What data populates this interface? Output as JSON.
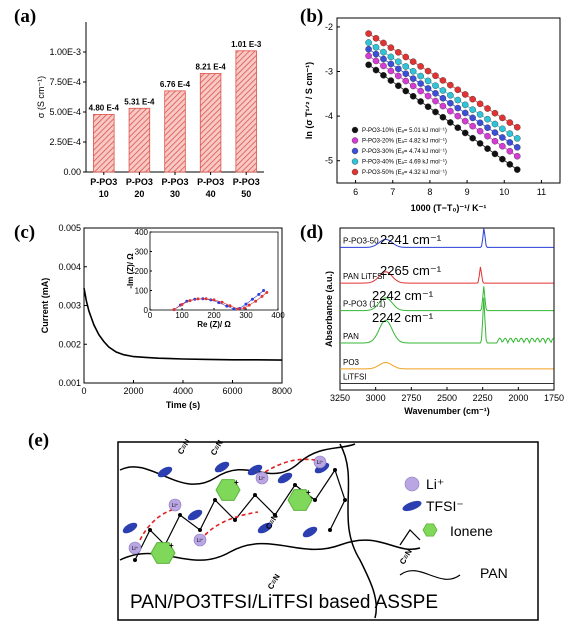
{
  "panels": {
    "a": "(a)",
    "b": "(b)",
    "c": "(c)",
    "d": "(d)",
    "e": "(e)"
  },
  "chart_data": [
    {
      "panel": "a",
      "type": "bar",
      "categories": [
        [
          "P-PO3",
          "10"
        ],
        [
          "P-PO3",
          "20"
        ],
        [
          "P-PO3",
          "30"
        ],
        [
          "P-PO3",
          "40"
        ],
        [
          "P-PO3",
          "50"
        ]
      ],
      "values": [
        0.00048,
        0.000531,
        0.000676,
        0.000821,
        0.00101
      ],
      "data_labels": [
        "4.80 E-4",
        "5.31 E-4",
        "6.76 E-4",
        "8.21 E-4",
        "1.01 E-3"
      ],
      "ylabel": "σ (S cm⁻¹)",
      "ylim": [
        0,
        0.00125
      ],
      "yticks": [
        0,
        0.00025,
        0.0005,
        0.00075,
        0.001
      ],
      "ytick_labels": [
        "0.00",
        "2.50E-4",
        "5.00E-4",
        "7.50E-4",
        "1.00E-3"
      ],
      "colors": {
        "fill": "#f6c9c5",
        "hatch": "#e0524a"
      }
    },
    {
      "panel": "b",
      "type": "scatter",
      "xlabel": "1000 (T−T₀)⁻¹/ K⁻¹",
      "ylabel": "ln (σ T¹ᐟ² / S cm⁻¹)",
      "xlim": [
        5.5,
        11.5
      ],
      "ylim": [
        -5.5,
        -1.8
      ],
      "xticks": [
        6,
        7,
        8,
        9,
        10,
        11
      ],
      "yticks": [
        -5,
        -4,
        -3,
        -2
      ],
      "x": [
        6.35,
        6.55,
        6.75,
        6.95,
        7.15,
        7.35,
        7.55,
        7.75,
        7.95,
        8.15,
        8.35,
        8.55,
        8.75,
        8.95,
        9.15,
        9.35,
        9.55,
        9.75,
        9.95,
        10.15,
        10.35
      ],
      "series": [
        {
          "name": "P-PO3-10% (Eₐ= 5.01 kJ mol⁻¹)",
          "color": "#111111",
          "y0": -2.85,
          "y1": -5.2
        },
        {
          "name": "P-PO3-20% (Eₐ= 4.82 kJ mol⁻¹)",
          "color": "#d63bd6",
          "y0": -2.65,
          "y1": -4.9
        },
        {
          "name": "P-PO3-30% (Eₐ= 4.74 kJ mol⁻¹)",
          "color": "#3b4fd8",
          "y0": -2.5,
          "y1": -4.7
        },
        {
          "name": "P-PO3-40% (Eₐ= 4.69 kJ mol⁻¹)",
          "color": "#2fc4d8",
          "y0": -2.35,
          "y1": -4.5
        },
        {
          "name": "P-PO3-50% (Eₐ= 4.32 kJ mol⁻¹)",
          "color": "#e23232",
          "y0": -2.15,
          "y1": -4.25
        }
      ],
      "legend": "bottom-right"
    },
    {
      "panel": "c",
      "type": "line",
      "xlabel": "Time (s)",
      "ylabel": "Current (mA)",
      "xlim": [
        0,
        8000
      ],
      "ylim": [
        0.001,
        0.005
      ],
      "xticks": [
        0,
        2000,
        4000,
        6000,
        8000
      ],
      "yticks": [
        0.001,
        0.002,
        0.003,
        0.004,
        0.005
      ],
      "ytick_labels": [
        "0.001",
        "0.002",
        "0.003",
        "0.004",
        "0.005"
      ],
      "x": [
        0,
        100,
        200,
        400,
        600,
        800,
        1000,
        1300,
        1600,
        2000,
        2500,
        3000,
        3500,
        4000,
        5000,
        6000,
        7000,
        8000
      ],
      "y": [
        0.00345,
        0.0031,
        0.00285,
        0.0025,
        0.00225,
        0.00207,
        0.00193,
        0.0018,
        0.00173,
        0.00168,
        0.00166,
        0.00164,
        0.00163,
        0.00162,
        0.00161,
        0.0016,
        0.0016,
        0.00159
      ],
      "color": "#000000",
      "inset": {
        "xlabel": "Re (Z)/ Ω",
        "ylabel": "-Im (Z)/ Ω",
        "xlim": [
          0,
          400
        ],
        "ylim": [
          0,
          400
        ],
        "xticks": [
          0,
          100,
          200,
          300,
          400
        ],
        "yticks": [
          0,
          100,
          200,
          300,
          400
        ],
        "series": [
          {
            "color": "#2a3fd8",
            "x": [
              75,
              95,
              115,
              140,
              165,
              190,
              215,
              240,
              262,
              280,
              300,
              320,
              340,
              355
            ],
            "y": [
              2,
              25,
              45,
              55,
              58,
              52,
              38,
              20,
              5,
              8,
              30,
              55,
              80,
              100
            ]
          },
          {
            "color": "#e23232",
            "x": [
              75,
              100,
              125,
              150,
              175,
              200,
              225,
              250,
              275,
              295,
              310,
              330,
              350,
              365
            ],
            "y": [
              2,
              28,
              48,
              57,
              58,
              52,
              40,
              22,
              5,
              10,
              25,
              45,
              70,
              90
            ]
          }
        ]
      }
    },
    {
      "panel": "d",
      "type": "line",
      "xlabel": "Wavenumber (cm⁻¹)",
      "ylabel": "Absorbance (a.u.)",
      "xlim": [
        3250,
        1750
      ],
      "xticks": [
        3250,
        3000,
        2750,
        2500,
        2250,
        2000,
        1750
      ],
      "series": [
        {
          "name": "P-PO3-50",
          "color": "#2a3fd8",
          "baseline": 0.12,
          "peaks": [
            [
              2930,
              0.05
            ],
            [
              2241,
              0.12
            ]
          ]
        },
        {
          "name": "PAN LiTFSI",
          "color": "#e23232",
          "baseline": 0.34,
          "peaks": [
            [
              2930,
              0.07
            ],
            [
              2265,
              0.1
            ]
          ]
        },
        {
          "name": "P-PO3 (1:1)",
          "color": "#33b833",
          "baseline": 0.51,
          "peaks": [
            [
              2930,
              0.08
            ],
            [
              2242,
              0.15
            ]
          ]
        },
        {
          "name": "PAN",
          "color": "#33b833",
          "baseline": 0.71,
          "peaks": [
            [
              2930,
              0.14
            ],
            [
              2242,
              0.28
            ]
          ]
        },
        {
          "name": "PO3",
          "color": "#f0a020",
          "baseline": 0.87,
          "peaks": [
            [
              2930,
              0.04
            ]
          ]
        },
        {
          "name": "LiTFSI",
          "color": "#333333",
          "baseline": 0.96,
          "peaks": []
        }
      ],
      "annotations": [
        "2241 cm⁻¹",
        "2265 cm⁻¹",
        "2242 cm⁻¹",
        "2242 cm⁻¹"
      ]
    }
  ],
  "schematic": {
    "title": "PAN/PO3TFSI/LiTFSI based ASSPE",
    "legend": {
      "li": "Li⁺",
      "tfsi": "TFSI⁻",
      "ionene": "Ionene",
      "pan": "PAN"
    },
    "li_label": "Li⁺",
    "cn_label": "C≡N",
    "plus": "+",
    "colors": {
      "li": "#b9a6e2",
      "tfsi": "#2b3fb0",
      "ionene": "#7fd85a",
      "arrow": "#e02020",
      "cn": "#1a8a3a"
    }
  }
}
